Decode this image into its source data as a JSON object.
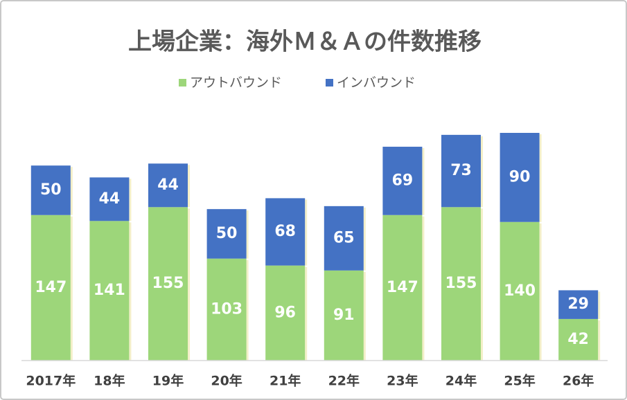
{
  "chart_data": {
    "type": "stacked-bar",
    "title": "上場企業：海外Ｍ＆Ａの件数推移",
    "categories": [
      "2017年",
      "18年",
      "19年",
      "20年",
      "21年",
      "22年",
      "23年",
      "24年",
      "25年",
      "26年"
    ],
    "series": [
      {
        "name": "アウトバウンド",
        "color": "#9dd67a",
        "values": [
          147,
          141,
          155,
          103,
          96,
          91,
          147,
          155,
          140,
          42
        ]
      },
      {
        "name": "インバウンド",
        "color": "#4472c4",
        "values": [
          50,
          44,
          44,
          50,
          68,
          65,
          69,
          73,
          90,
          29
        ]
      }
    ]
  }
}
